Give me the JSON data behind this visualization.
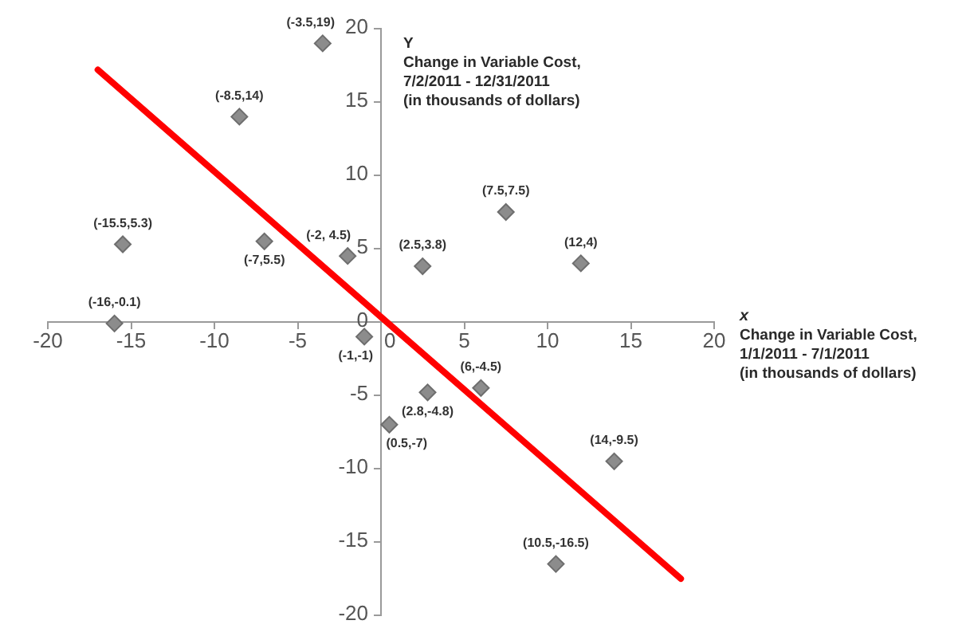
{
  "chart_data": {
    "type": "scatter",
    "xlabel": "x\nChange in Variable Cost,\n1/1/2011 - 7/1/2011\n(in thousands of dollars)",
    "ylabel": "Y\nChange in Variable Cost,\n7/2/2011 - 12/31/2011\n(in thousands of dollars)",
    "series": [
      {
        "type": "scatter",
        "color": "#8c8c8c",
        "marker": "diamond",
        "x": [
          -16,
          -15.5,
          -8.5,
          -7,
          -3.5,
          -2,
          -1,
          0.5,
          2.5,
          2.8,
          6,
          7.5,
          10.5,
          12,
          14
        ],
        "values": [
          -0.1,
          5.3,
          14,
          5.5,
          19,
          4.5,
          -1,
          -7,
          3.8,
          -4.8,
          -4.5,
          7.5,
          -16.5,
          4,
          -9.5
        ]
      },
      {
        "type": "line",
        "color": "#ff0000",
        "marker": "none",
        "x": [
          -17,
          18
        ],
        "values": [
          17.2,
          -17.5
        ]
      }
    ],
    "annotations": [
      {
        "text": "(-16,-0.1)",
        "x": -16,
        "y": -0.1
      },
      {
        "text": "(-15.5,5.3)",
        "x": -15.5,
        "y": 5.3
      },
      {
        "text": "(-8.5,14)",
        "x": -8.5,
        "y": 14
      },
      {
        "text": "(-7,5.5)",
        "x": -7,
        "y": 5.5
      },
      {
        "text": "(-3.5,19)",
        "x": -3.5,
        "y": 19
      },
      {
        "text": "(-2, 4.5)",
        "x": -2,
        "y": 4.5
      },
      {
        "text": "(-1,-1)",
        "x": -1,
        "y": -1
      },
      {
        "text": "(0.5,-7)",
        "x": 0.5,
        "y": -7
      },
      {
        "text": "(2.5,3.8)",
        "x": 2.5,
        "y": 3.8
      },
      {
        "text": "(2.8,-4.8)",
        "x": 2.8,
        "y": -4.8
      },
      {
        "text": "(6,-4.5)",
        "x": 6,
        "y": -4.5
      },
      {
        "text": "(7.5,7.5)",
        "x": 7.5,
        "y": 7.5
      },
      {
        "text": "(10.5,-16.5)",
        "x": 10.5,
        "y": -16.5
      },
      {
        "text": "(12,4)",
        "x": 12,
        "y": 4
      },
      {
        "text": "(14,-9.5)",
        "x": 14,
        "y": -9.5
      }
    ],
    "xlim": [
      -20,
      20
    ],
    "ylim": [
      -20,
      20
    ],
    "xticks": [
      -20,
      -15,
      -10,
      -5,
      0,
      5,
      10,
      15,
      20
    ],
    "yticks": [
      -20,
      -15,
      -10,
      -5,
      0,
      5,
      10,
      15,
      20
    ],
    "grid": false,
    "legend": false
  }
}
